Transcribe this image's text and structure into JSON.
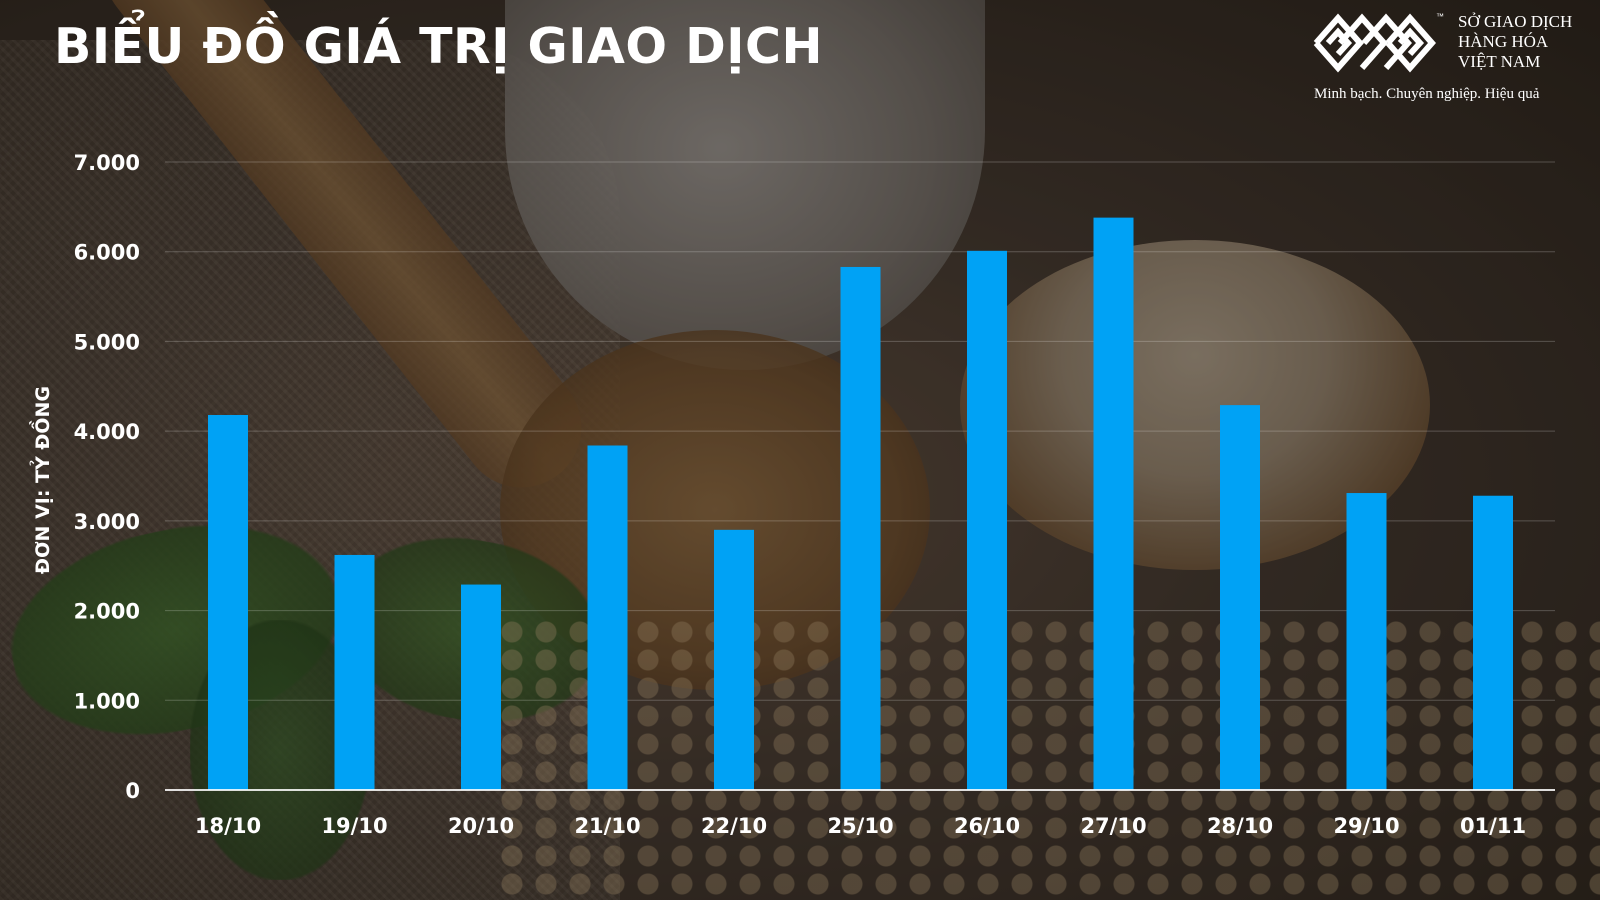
{
  "title": "BIỂU ĐỒ GIÁ TRỊ GIAO DỊCH",
  "logo": {
    "name_lines": [
      "SỞ GIAO DỊCH",
      "HÀNG HÓA",
      "VIỆT NAM"
    ],
    "trademark": "™",
    "slogan": "Minh bạch. Chuyên nghiệp. Hiệu quả"
  },
  "colors": {
    "bar": "#00a2f5",
    "text": "#ffffff",
    "grid": "rgba(255,255,255,0.22)",
    "axis": "rgba(255,255,255,0.85)"
  },
  "chart_data": {
    "type": "bar",
    "title": "BIỂU ĐỒ GIÁ TRỊ GIAO DỊCH",
    "xlabel": "",
    "ylabel": "ĐƠN VỊ: TỶ ĐỒNG",
    "categories": [
      "18/10",
      "19/10",
      "20/10",
      "21/10",
      "22/10",
      "25/10",
      "26/10",
      "27/10",
      "28/10",
      "29/10",
      "01/11"
    ],
    "values": [
      4180,
      2620,
      2290,
      3840,
      2900,
      5830,
      6010,
      6380,
      4290,
      3310,
      3280
    ],
    "ylim": [
      0,
      7000
    ],
    "yticks": [
      0,
      1000,
      2000,
      3000,
      4000,
      5000,
      6000,
      7000
    ],
    "ytick_labels": [
      "0",
      "1.000",
      "2.000",
      "3.000",
      "4.000",
      "5.000",
      "6.000",
      "7.000"
    ],
    "grid": true,
    "legend": "none"
  }
}
